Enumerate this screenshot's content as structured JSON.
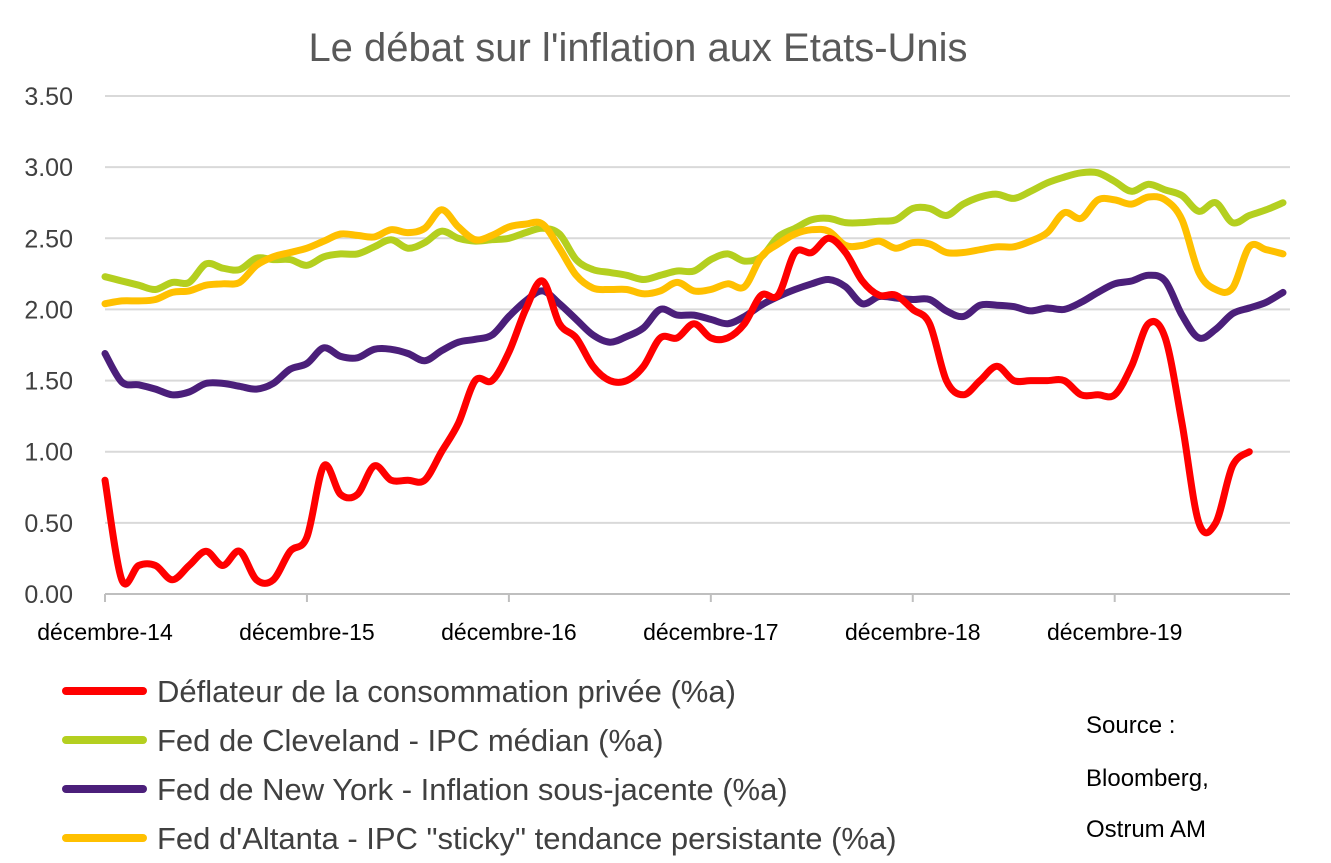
{
  "chart_data": {
    "type": "line",
    "title": "Le débat sur l'inflation aux Etats-Unis",
    "xlabel": "",
    "ylabel": "",
    "ylim": [
      0,
      3.5
    ],
    "y_ticks": [
      "0.00",
      "0.50",
      "1.00",
      "1.50",
      "2.00",
      "2.50",
      "3.00",
      "3.50"
    ],
    "x_tick_labels": [
      "décembre-14",
      "décembre-15",
      "décembre-16",
      "décembre-17",
      "décembre-18",
      "décembre-19"
    ],
    "x_range": [
      0,
      70
    ],
    "grid": "horizontal",
    "legend_position": "bottom-left",
    "series": [
      {
        "name": "Déflateur de la consommation privée (%a)",
        "color": "#ff0000",
        "x": [
          0,
          1,
          2,
          3,
          4,
          5,
          6,
          7,
          8,
          9,
          10,
          11,
          12,
          13,
          14,
          15,
          16,
          17,
          18,
          19,
          20,
          21,
          22,
          23,
          24,
          25,
          26,
          27,
          28,
          29,
          30,
          31,
          32,
          33,
          34,
          35,
          36,
          37,
          38,
          39,
          40,
          41,
          42,
          43,
          44,
          45,
          46,
          47,
          48,
          49,
          50,
          51,
          52,
          53,
          54,
          55,
          56,
          57,
          58,
          59,
          60,
          61,
          62,
          63,
          64,
          65,
          66,
          67,
          68
        ],
        "values": [
          0.8,
          0.1,
          0.2,
          0.2,
          0.1,
          0.2,
          0.3,
          0.2,
          0.3,
          0.1,
          0.1,
          0.3,
          0.4,
          0.9,
          0.7,
          0.7,
          0.9,
          0.8,
          0.8,
          0.8,
          1.0,
          1.2,
          1.5,
          1.5,
          1.7,
          2.0,
          2.2,
          1.9,
          1.8,
          1.6,
          1.5,
          1.5,
          1.6,
          1.8,
          1.8,
          1.9,
          1.8,
          1.8,
          1.9,
          2.1,
          2.1,
          2.4,
          2.4,
          2.5,
          2.4,
          2.2,
          2.1,
          2.1,
          2.0,
          1.9,
          1.5,
          1.4,
          1.5,
          1.6,
          1.5,
          1.5,
          1.5,
          1.5,
          1.4,
          1.4,
          1.4,
          1.6,
          1.9,
          1.8,
          1.2,
          0.5,
          0.5,
          0.9,
          1.0
        ]
      },
      {
        "name": "Fed de Cleveland - IPC médian (%a)",
        "color": "#b4cf1f",
        "x": [
          0,
          1,
          2,
          3,
          4,
          5,
          6,
          7,
          8,
          9,
          10,
          11,
          12,
          13,
          14,
          15,
          16,
          17,
          18,
          19,
          20,
          21,
          22,
          23,
          24,
          25,
          26,
          27,
          28,
          29,
          30,
          31,
          32,
          33,
          34,
          35,
          36,
          37,
          38,
          39,
          40,
          41,
          42,
          43,
          44,
          45,
          46,
          47,
          48,
          49,
          50,
          51,
          52,
          53,
          54,
          55,
          56,
          57,
          58,
          59,
          60,
          61,
          62,
          63,
          64,
          65,
          66,
          67,
          68,
          69,
          70
        ],
        "values": [
          2.23,
          2.2,
          2.17,
          2.14,
          2.19,
          2.19,
          2.32,
          2.29,
          2.28,
          2.36,
          2.35,
          2.35,
          2.31,
          2.37,
          2.39,
          2.39,
          2.44,
          2.49,
          2.43,
          2.47,
          2.55,
          2.5,
          2.48,
          2.49,
          2.5,
          2.54,
          2.57,
          2.53,
          2.35,
          2.28,
          2.26,
          2.24,
          2.21,
          2.24,
          2.27,
          2.27,
          2.35,
          2.39,
          2.34,
          2.37,
          2.51,
          2.57,
          2.63,
          2.64,
          2.61,
          2.61,
          2.62,
          2.63,
          2.71,
          2.71,
          2.66,
          2.74,
          2.79,
          2.81,
          2.78,
          2.83,
          2.89,
          2.93,
          2.96,
          2.96,
          2.9,
          2.83,
          2.88,
          2.84,
          2.8,
          2.69,
          2.75,
          2.61,
          2.66,
          2.7,
          2.75
        ]
      },
      {
        "name": "Fed de New York - Inflation sous-jacente (%a)",
        "color": "#4b1f7a",
        "x": [
          0,
          1,
          2,
          3,
          4,
          5,
          6,
          7,
          8,
          9,
          10,
          11,
          12,
          13,
          14,
          15,
          16,
          17,
          18,
          19,
          20,
          21,
          22,
          23,
          24,
          25,
          26,
          27,
          28,
          29,
          30,
          31,
          32,
          33,
          34,
          35,
          36,
          37,
          38,
          39,
          40,
          41,
          42,
          43,
          44,
          45,
          46,
          47,
          48,
          49,
          50,
          51,
          52,
          53,
          54,
          55,
          56,
          57,
          58,
          59,
          60,
          61,
          62,
          63,
          64,
          65,
          66,
          67,
          68,
          69,
          70
        ],
        "values": [
          1.69,
          1.49,
          1.47,
          1.44,
          1.4,
          1.42,
          1.48,
          1.48,
          1.46,
          1.44,
          1.48,
          1.58,
          1.62,
          1.73,
          1.67,
          1.66,
          1.72,
          1.72,
          1.69,
          1.64,
          1.71,
          1.77,
          1.79,
          1.82,
          1.95,
          2.06,
          2.13,
          2.04,
          1.93,
          1.82,
          1.77,
          1.81,
          1.87,
          2.0,
          1.96,
          1.96,
          1.93,
          1.9,
          1.95,
          2.03,
          2.09,
          2.14,
          2.18,
          2.21,
          2.16,
          2.04,
          2.09,
          2.08,
          2.07,
          2.07,
          1.99,
          1.95,
          2.03,
          2.03,
          2.02,
          1.99,
          2.01,
          2.0,
          2.05,
          2.12,
          2.18,
          2.2,
          2.24,
          2.2,
          1.96,
          1.8,
          1.86,
          1.97,
          2.01,
          2.05,
          2.12
        ]
      },
      {
        "name": "Fed d'Altanta - IPC \"sticky\" tendance persistante (%a)",
        "color": "#ffc000",
        "x": [
          0,
          1,
          2,
          3,
          4,
          5,
          6,
          7,
          8,
          9,
          10,
          11,
          12,
          13,
          14,
          15,
          16,
          17,
          18,
          19,
          20,
          21,
          22,
          23,
          24,
          25,
          26,
          27,
          28,
          29,
          30,
          31,
          32,
          33,
          34,
          35,
          36,
          37,
          38,
          39,
          40,
          41,
          42,
          43,
          44,
          45,
          46,
          47,
          48,
          49,
          50,
          51,
          52,
          53,
          54,
          55,
          56,
          57,
          58,
          59,
          60,
          61,
          62,
          63,
          64,
          65,
          66,
          67,
          68,
          69,
          70
        ],
        "values": [
          2.04,
          2.06,
          2.06,
          2.07,
          2.12,
          2.13,
          2.17,
          2.18,
          2.19,
          2.31,
          2.37,
          2.4,
          2.43,
          2.48,
          2.53,
          2.52,
          2.51,
          2.56,
          2.54,
          2.57,
          2.7,
          2.58,
          2.49,
          2.52,
          2.58,
          2.6,
          2.6,
          2.43,
          2.24,
          2.15,
          2.14,
          2.14,
          2.11,
          2.13,
          2.19,
          2.13,
          2.14,
          2.18,
          2.16,
          2.37,
          2.46,
          2.53,
          2.56,
          2.55,
          2.45,
          2.45,
          2.48,
          2.43,
          2.47,
          2.46,
          2.4,
          2.4,
          2.42,
          2.44,
          2.44,
          2.48,
          2.54,
          2.68,
          2.64,
          2.77,
          2.77,
          2.74,
          2.79,
          2.77,
          2.63,
          2.26,
          2.14,
          2.15,
          2.44,
          2.42,
          2.39
        ]
      }
    ],
    "annotation": [
      "Source :",
      "Bloomberg,",
      "Ostrum AM"
    ]
  }
}
